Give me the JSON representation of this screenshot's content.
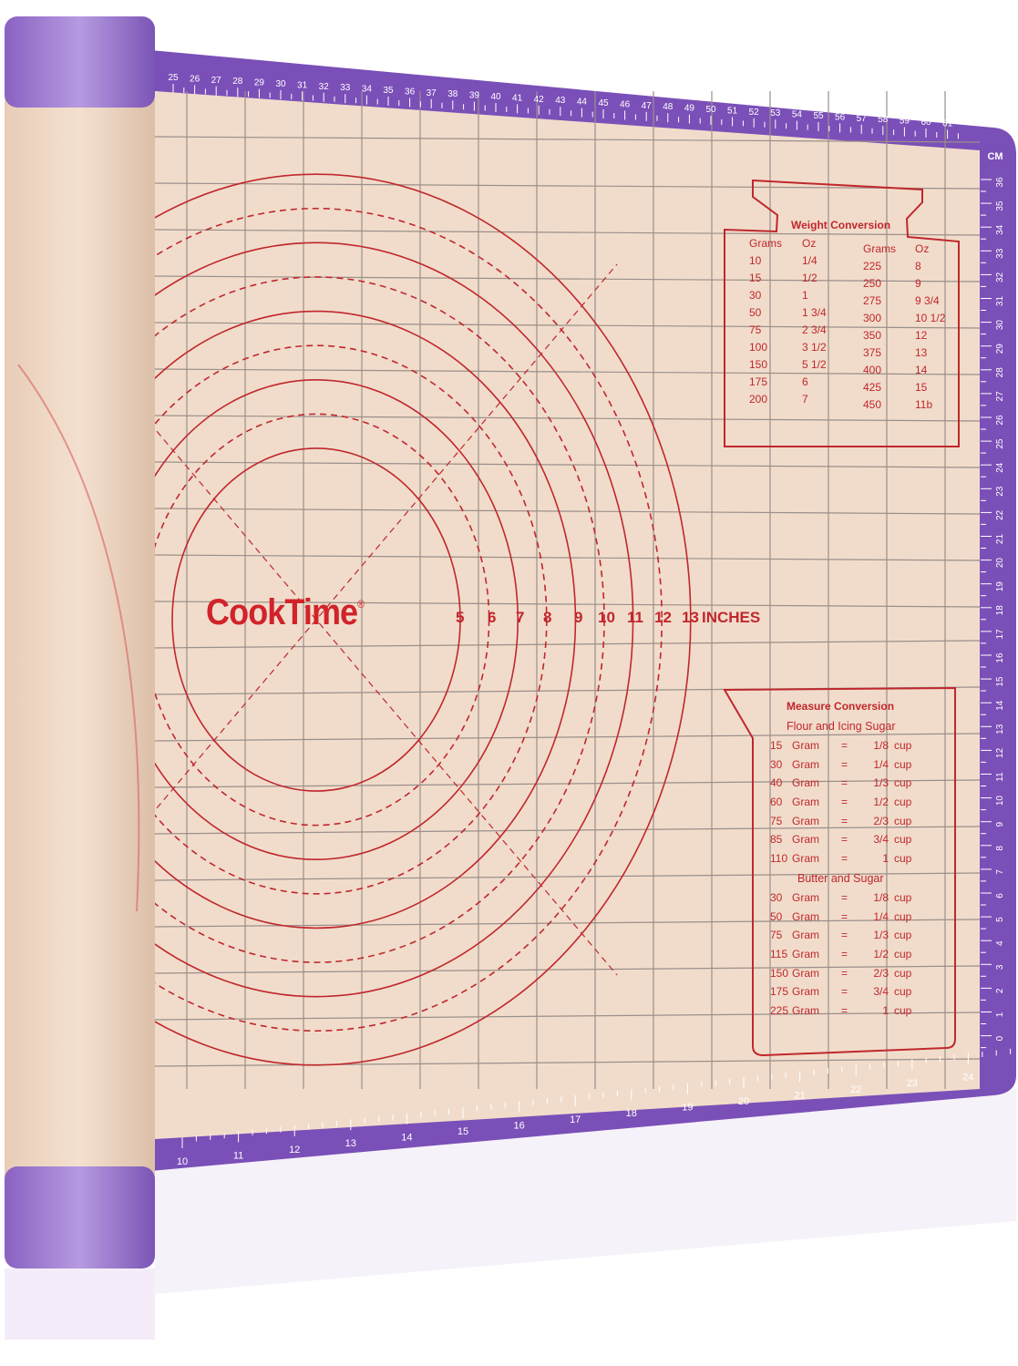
{
  "colors": {
    "mat_border": "#7b4fb8",
    "mat_surface": "#f1dccb",
    "print_red": "#c0272d",
    "grid": "#9a8f8a",
    "roll": "#ecd2bd"
  },
  "logo": {
    "text": "CookTime",
    "mark": "®"
  },
  "inch_labels": [
    "5",
    "6",
    "7",
    "8",
    "9",
    "10",
    "11",
    "12",
    "13"
  ],
  "inch_unit": "INCHES",
  "rulers": {
    "top": [
      "25",
      "26",
      "27",
      "28",
      "29",
      "30",
      "31",
      "32",
      "33",
      "34",
      "35",
      "36",
      "37",
      "38",
      "39",
      "40",
      "41",
      "42",
      "43",
      "44",
      "45",
      "46",
      "47",
      "48",
      "49",
      "50",
      "51",
      "52",
      "53",
      "54",
      "55",
      "56",
      "57",
      "58",
      "59",
      "60",
      "61"
    ],
    "right_unit": "CM",
    "right": [
      "36",
      "35",
      "34",
      "33",
      "32",
      "31",
      "30",
      "29",
      "28",
      "27",
      "26",
      "25",
      "24",
      "23",
      "22",
      "21",
      "20",
      "19",
      "18",
      "17",
      "16",
      "15",
      "14",
      "13",
      "12",
      "11",
      "10",
      "9",
      "8",
      "7",
      "6",
      "5",
      "4",
      "3",
      "2",
      "1",
      "0"
    ],
    "bottom": [
      "10",
      "11",
      "12",
      "13",
      "14",
      "15",
      "16",
      "17",
      "18",
      "19",
      "20",
      "21",
      "22",
      "23",
      "24"
    ]
  },
  "weight_conversion": {
    "title": "Weight Conversion",
    "headers": [
      "Grams",
      "Oz",
      "Grams",
      "Oz"
    ],
    "rows": [
      [
        "10",
        "1/4",
        "225",
        "8"
      ],
      [
        "15",
        "1/2",
        "250",
        "9"
      ],
      [
        "30",
        "1",
        "275",
        "9 3/4"
      ],
      [
        "50",
        "1 3/4",
        "300",
        "10 1/2"
      ],
      [
        "75",
        "2 3/4",
        "350",
        "12"
      ],
      [
        "100",
        "3 1/2",
        "375",
        "13"
      ],
      [
        "150",
        "5 1/2",
        "400",
        "14"
      ],
      [
        "175",
        "6",
        "425",
        "15"
      ],
      [
        "200",
        "7",
        "450",
        "11b"
      ]
    ]
  },
  "measure_conversion": {
    "title": "Measure Conversion",
    "sections": [
      {
        "heading": "Flour and Icing Sugar",
        "rows": [
          [
            "15",
            "Gram",
            "=",
            "1/8",
            "cup"
          ],
          [
            "30",
            "Gram",
            "=",
            "1/4",
            "cup"
          ],
          [
            "40",
            "Gram",
            "=",
            "1/3",
            "cup"
          ],
          [
            "60",
            "Gram",
            "=",
            "1/2",
            "cup"
          ],
          [
            "75",
            "Gram",
            "=",
            "2/3",
            "cup"
          ],
          [
            "85",
            "Gram",
            "=",
            "3/4",
            "cup"
          ],
          [
            "110",
            "Gram",
            "=",
            "1",
            "cup"
          ]
        ]
      },
      {
        "heading": "Butter and Sugar",
        "rows": [
          [
            "30",
            "Gram",
            "=",
            "1/8",
            "cup"
          ],
          [
            "50",
            "Gram",
            "=",
            "1/4",
            "cup"
          ],
          [
            "75",
            "Gram",
            "=",
            "1/3",
            "cup"
          ],
          [
            "115",
            "Gram",
            "=",
            "1/2",
            "cup"
          ],
          [
            "150",
            "Gram",
            "=",
            "2/3",
            "cup"
          ],
          [
            "175",
            "Gram",
            "=",
            "3/4",
            "cup"
          ],
          [
            "225",
            "Gram",
            "=",
            "1",
            "cup"
          ]
        ]
      }
    ]
  }
}
